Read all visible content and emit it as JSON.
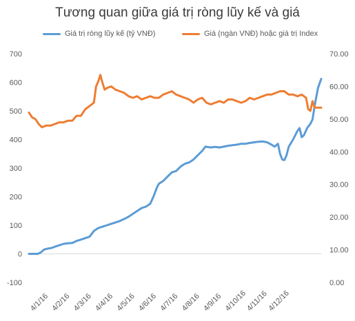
{
  "chart_data": {
    "type": "line",
    "title": "Tương quan giữa giá trị ròng lũy kế và giá",
    "grid": false,
    "legend_position": "top",
    "x_tick_labels": [
      "4/1/16",
      "4/2/16",
      "4/3/16",
      "4/4/16",
      "4/5/16",
      "4/6/16",
      "4/7/16",
      "4/8/16",
      "4/9/16",
      "4/10/16",
      "4/11/16",
      "4/12/16"
    ],
    "y_left": {
      "range": [
        -100,
        700
      ],
      "ticks": [
        -100,
        0,
        100,
        200,
        300,
        400,
        500,
        600,
        700
      ],
      "tick_labels": [
        "-100",
        "0",
        "100",
        "200",
        "300",
        "400",
        "500",
        "600",
        "700"
      ]
    },
    "y_right": {
      "range": [
        0,
        70
      ],
      "ticks": [
        0,
        10,
        20,
        30,
        40,
        50,
        60,
        70
      ],
      "tick_labels": [
        "0.00",
        "10.00",
        "20.00",
        "30.00",
        "40.00",
        "50.00",
        "60.00",
        "70.00"
      ]
    },
    "x_unit_note": "x values are months elapsed since 4/1/16",
    "series": [
      {
        "name": "Giá trị ròng lũy kế (tỷ VNĐ)",
        "axis": "left",
        "color": "#5b9bd5",
        "points": [
          [
            0,
            0
          ],
          [
            0.4,
            0
          ],
          [
            0.55,
            5
          ],
          [
            0.7,
            15
          ],
          [
            0.85,
            18
          ],
          [
            1.0,
            20
          ],
          [
            1.1,
            22
          ],
          [
            1.2,
            25
          ],
          [
            1.4,
            30
          ],
          [
            1.6,
            35
          ],
          [
            1.8,
            37
          ],
          [
            2.0,
            38
          ],
          [
            2.2,
            45
          ],
          [
            2.4,
            50
          ],
          [
            2.6,
            55
          ],
          [
            2.8,
            60
          ],
          [
            2.95,
            75
          ],
          [
            3.0,
            80
          ],
          [
            3.2,
            90
          ],
          [
            3.4,
            95
          ],
          [
            3.6,
            100
          ],
          [
            3.8,
            105
          ],
          [
            4.0,
            110
          ],
          [
            4.2,
            115
          ],
          [
            4.4,
            122
          ],
          [
            4.6,
            130
          ],
          [
            4.8,
            140
          ],
          [
            5.0,
            150
          ],
          [
            5.2,
            160
          ],
          [
            5.4,
            165
          ],
          [
            5.6,
            175
          ],
          [
            5.75,
            200
          ],
          [
            5.9,
            230
          ],
          [
            6.0,
            245
          ],
          [
            6.2,
            255
          ],
          [
            6.4,
            270
          ],
          [
            6.6,
            285
          ],
          [
            6.8,
            290
          ],
          [
            7.0,
            305
          ],
          [
            7.2,
            315
          ],
          [
            7.4,
            320
          ],
          [
            7.6,
            330
          ],
          [
            7.8,
            345
          ],
          [
            8.0,
            360
          ],
          [
            8.15,
            375
          ],
          [
            8.4,
            372
          ],
          [
            8.6,
            374
          ],
          [
            8.8,
            372
          ],
          [
            9.0,
            375
          ],
          [
            9.2,
            378
          ],
          [
            9.4,
            380
          ],
          [
            9.6,
            382
          ],
          [
            9.8,
            385
          ],
          [
            10.0,
            385
          ],
          [
            10.2,
            388
          ],
          [
            10.4,
            390
          ],
          [
            10.6,
            392
          ],
          [
            10.8,
            393
          ],
          [
            11.0,
            390
          ],
          [
            11.2,
            382
          ],
          [
            11.35,
            375
          ],
          [
            11.5,
            385
          ],
          [
            11.6,
            350
          ],
          [
            11.7,
            330
          ],
          [
            11.8,
            328
          ],
          [
            11.9,
            345
          ],
          [
            12.0,
            375
          ],
          [
            12.2,
            400
          ],
          [
            12.4,
            430
          ],
          [
            12.5,
            440
          ],
          [
            12.6,
            408
          ],
          [
            12.7,
            415
          ],
          [
            12.85,
            440
          ],
          [
            13.0,
            455
          ],
          [
            13.1,
            470
          ],
          [
            13.2,
            520
          ],
          [
            13.35,
            580
          ],
          [
            13.5,
            612
          ]
        ]
      },
      {
        "name": "Giá (ngàn VNĐ) hoặc giá trị Index",
        "axis": "right",
        "color": "#ed7d31",
        "points": [
          [
            0,
            52.0
          ],
          [
            0.15,
            50.5
          ],
          [
            0.3,
            50.0
          ],
          [
            0.45,
            48.5
          ],
          [
            0.6,
            47.5
          ],
          [
            0.8,
            48.0
          ],
          [
            1.0,
            48.0
          ],
          [
            1.2,
            48.5
          ],
          [
            1.4,
            49.0
          ],
          [
            1.6,
            49.0
          ],
          [
            1.8,
            49.5
          ],
          [
            2.0,
            49.5
          ],
          [
            2.2,
            51.0
          ],
          [
            2.4,
            51.0
          ],
          [
            2.6,
            53.0
          ],
          [
            2.8,
            54.0
          ],
          [
            3.0,
            55.0
          ],
          [
            3.1,
            60.0
          ],
          [
            3.2,
            61.5
          ],
          [
            3.3,
            63.5
          ],
          [
            3.4,
            61.0
          ],
          [
            3.5,
            59.0
          ],
          [
            3.6,
            59.5
          ],
          [
            3.8,
            60.0
          ],
          [
            4.0,
            59.0
          ],
          [
            4.2,
            58.5
          ],
          [
            4.4,
            58.0
          ],
          [
            4.6,
            57.0
          ],
          [
            4.8,
            56.5
          ],
          [
            5.0,
            57.0
          ],
          [
            5.2,
            56.0
          ],
          [
            5.4,
            56.5
          ],
          [
            5.6,
            57.0
          ],
          [
            5.8,
            56.5
          ],
          [
            6.0,
            56.5
          ],
          [
            6.2,
            57.5
          ],
          [
            6.4,
            58.0
          ],
          [
            6.6,
            58.5
          ],
          [
            6.8,
            57.5
          ],
          [
            7.0,
            57.0
          ],
          [
            7.2,
            56.5
          ],
          [
            7.4,
            56.0
          ],
          [
            7.6,
            55.0
          ],
          [
            7.8,
            56.0
          ],
          [
            8.0,
            56.5
          ],
          [
            8.2,
            55.0
          ],
          [
            8.4,
            54.5
          ],
          [
            8.6,
            55.0
          ],
          [
            8.8,
            55.5
          ],
          [
            9.0,
            55.0
          ],
          [
            9.2,
            56.0
          ],
          [
            9.4,
            56.0
          ],
          [
            9.6,
            55.5
          ],
          [
            9.8,
            55.0
          ],
          [
            10.0,
            55.5
          ],
          [
            10.2,
            56.5
          ],
          [
            10.4,
            56.0
          ],
          [
            10.6,
            56.5
          ],
          [
            10.8,
            57.0
          ],
          [
            11.0,
            57.5
          ],
          [
            11.2,
            57.5
          ],
          [
            11.4,
            58.0
          ],
          [
            11.6,
            58.5
          ],
          [
            11.8,
            58.5
          ],
          [
            12.0,
            57.5
          ],
          [
            12.2,
            57.5
          ],
          [
            12.4,
            57.0
          ],
          [
            12.6,
            57.5
          ],
          [
            12.8,
            56.5
          ],
          [
            12.9,
            53.0
          ],
          [
            13.0,
            52.5
          ],
          [
            13.1,
            55.5
          ],
          [
            13.2,
            53.5
          ],
          [
            13.35,
            53.5
          ],
          [
            13.5,
            53.5
          ]
        ]
      }
    ]
  }
}
